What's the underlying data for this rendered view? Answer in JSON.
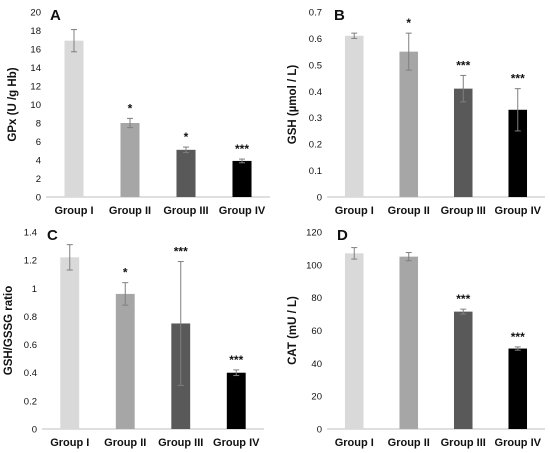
{
  "chart_data": [
    {
      "panel": "A",
      "type": "bar",
      "ylabel": "GPx  (U /g Hb)",
      "categories": [
        "Group I",
        "Group II",
        "Group III",
        "Group IV"
      ],
      "values": [
        16.9,
        8.0,
        5.1,
        3.9
      ],
      "errors": [
        1.2,
        0.5,
        0.3,
        0.2
      ],
      "significance": [
        "",
        "*",
        "*",
        "***"
      ],
      "ylim": [
        0,
        20
      ],
      "yticks": [
        0,
        2,
        4,
        6,
        8,
        10,
        12,
        14,
        16,
        18,
        20
      ],
      "colors": [
        "#d9d9d9",
        "#a6a6a6",
        "#595959",
        "#000000"
      ]
    },
    {
      "panel": "B",
      "type": "bar",
      "ylabel": "GSH  (µmol / L)",
      "categories": [
        "Group I",
        "Group II",
        "Group III",
        "Group IV"
      ],
      "values": [
        0.61,
        0.55,
        0.41,
        0.33
      ],
      "errors": [
        0.01,
        0.07,
        0.05,
        0.08
      ],
      "significance": [
        "",
        "*",
        "***",
        "***"
      ],
      "ylim": [
        0,
        0.7
      ],
      "yticks": [
        0,
        0.1,
        0.2,
        0.3,
        0.4,
        0.5,
        0.6,
        0.7
      ],
      "colors": [
        "#d9d9d9",
        "#a6a6a6",
        "#595959",
        "#000000"
      ]
    },
    {
      "panel": "C",
      "type": "bar",
      "ylabel": "GSH/GSSG ratio",
      "categories": [
        "Group I",
        "Group II",
        "Group III",
        "Group IV"
      ],
      "values": [
        1.22,
        0.96,
        0.75,
        0.4
      ],
      "errors": [
        0.09,
        0.08,
        0.44,
        0.02
      ],
      "significance": [
        "",
        "*",
        "***",
        "***"
      ],
      "ylim": [
        0,
        1.4
      ],
      "yticks": [
        0,
        0.2,
        0.4,
        0.6,
        0.8,
        1,
        1.2,
        1.4
      ],
      "colors": [
        "#d9d9d9",
        "#a6a6a6",
        "#595959",
        "#000000"
      ]
    },
    {
      "panel": "D",
      "type": "bar",
      "ylabel": "CAT (mU / L)",
      "categories": [
        "Group I",
        "Group II",
        "Group III",
        "Group IV"
      ],
      "values": [
        107,
        105,
        71.5,
        49
      ],
      "errors": [
        3.5,
        2.5,
        1.5,
        1.0
      ],
      "significance": [
        "",
        "",
        "***",
        "***"
      ],
      "ylim": [
        0,
        120
      ],
      "yticks": [
        0,
        20,
        40,
        60,
        80,
        100,
        120
      ],
      "colors": [
        "#d9d9d9",
        "#a6a6a6",
        "#595959",
        "#000000"
      ]
    }
  ]
}
